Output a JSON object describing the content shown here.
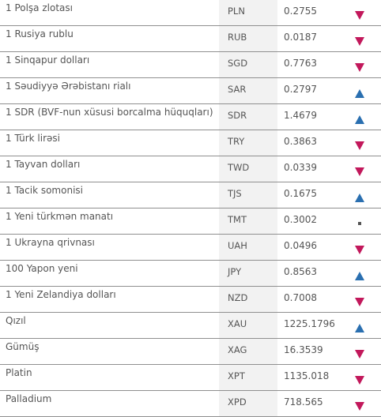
{
  "colors": {
    "down": "#c2185b",
    "up": "#2a6fb0",
    "unchanged": "#555555",
    "code_bg": "#f2f2f2",
    "divider": "#8f8f8f"
  },
  "rows": [
    {
      "name": "1 Polşa zlotası",
      "code": "PLN",
      "rate": "0.2755",
      "trend": "down"
    },
    {
      "name": "1 Rusiya rublu",
      "code": "RUB",
      "rate": "0.0187",
      "trend": "down"
    },
    {
      "name": "1 Sinqapur dolları",
      "code": "SGD",
      "rate": "0.7763",
      "trend": "down"
    },
    {
      "name": "1 Səudiyyə Ərəbistanı rialı",
      "code": "SAR",
      "rate": "0.2797",
      "trend": "up"
    },
    {
      "name": "1 SDR (BVF-nun xüsusi borcalma hüquqları)",
      "code": "SDR",
      "rate": "1.4679",
      "trend": "up"
    },
    {
      "name": "1 Türk lirəsi",
      "code": "TRY",
      "rate": "0.3863",
      "trend": "down"
    },
    {
      "name": "1 Tayvan dolları",
      "code": "TWD",
      "rate": "0.0339",
      "trend": "down"
    },
    {
      "name": "1 Tacik somonisi",
      "code": "TJS",
      "rate": "0.1675",
      "trend": "up"
    },
    {
      "name": "1 Yeni türkmən manatı",
      "code": "TMT",
      "rate": "0.3002",
      "trend": "unchanged"
    },
    {
      "name": "1 Ukrayna qrivnası",
      "code": "UAH",
      "rate": "0.0496",
      "trend": "down"
    },
    {
      "name": "100 Yapon yeni",
      "code": "JPY",
      "rate": "0.8563",
      "trend": "up"
    },
    {
      "name": "1 Yeni Zelandiya dolları",
      "code": "NZD",
      "rate": "0.7008",
      "trend": "down"
    },
    {
      "name": "Qızıl",
      "code": "XAU",
      "rate": "1225.1796",
      "trend": "up"
    },
    {
      "name": "Gümüş",
      "code": "XAG",
      "rate": "16.3539",
      "trend": "down"
    },
    {
      "name": "Platin",
      "code": "XPT",
      "rate": "1135.018",
      "trend": "down"
    },
    {
      "name": "Palladium",
      "code": "XPD",
      "rate": "718.565",
      "trend": "down"
    }
  ]
}
